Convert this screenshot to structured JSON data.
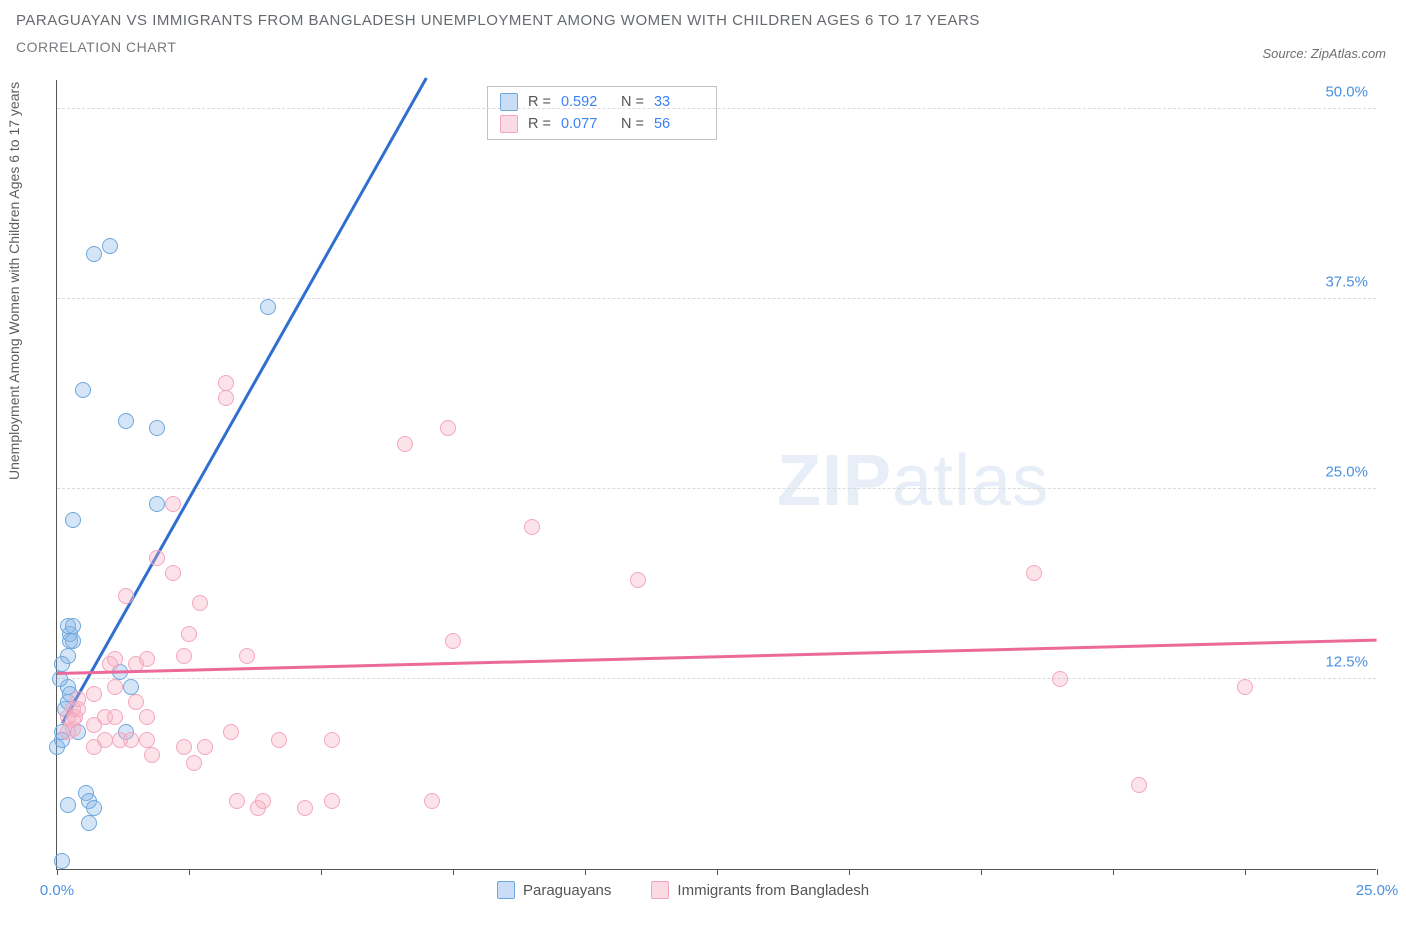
{
  "title": "PARAGUAYAN VS IMMIGRANTS FROM BANGLADESH UNEMPLOYMENT AMONG WOMEN WITH CHILDREN AGES 6 TO 17 YEARS",
  "subtitle": "CORRELATION CHART",
  "source": "Source: ZipAtlas.com",
  "watermark_a": "ZIP",
  "watermark_b": "atlas",
  "chart": {
    "type": "scatter",
    "y_axis_title": "Unemployment Among Women with Children Ages 6 to 17 years",
    "xlim": [
      0,
      25
    ],
    "ylim": [
      0,
      52
    ],
    "xticks": [
      0,
      2.5,
      5,
      7.5,
      10,
      12.5,
      15,
      17.5,
      20,
      22.5,
      25
    ],
    "xtick_labels": {
      "0": "0.0%",
      "25": "25.0%"
    },
    "yticks": [
      12.5,
      25.0,
      37.5,
      50.0
    ],
    "ytick_labels": [
      "12.5%",
      "25.0%",
      "37.5%",
      "50.0%"
    ],
    "grid_color": "#d8dadc",
    "background_color": "#ffffff",
    "axis_color": "#555555",
    "series": [
      {
        "name": "Paraguayans",
        "color_fill": "rgba(135,180,235,0.35)",
        "color_stroke": "#6fa8dc",
        "trend_color": "#2f6fd0",
        "r": 0.592,
        "n": 33,
        "trend": {
          "x0": 0.1,
          "y0": 9.5,
          "x1": 7.0,
          "y1": 52.0
        },
        "points": [
          [
            0.1,
            0.5
          ],
          [
            0.1,
            9.0
          ],
          [
            0.15,
            10.5
          ],
          [
            0.2,
            11.0
          ],
          [
            0.0,
            8.0
          ],
          [
            0.2,
            12.0
          ],
          [
            0.25,
            11.5
          ],
          [
            0.2,
            14.0
          ],
          [
            0.25,
            15.0
          ],
          [
            0.25,
            15.5
          ],
          [
            0.3,
            15.0
          ],
          [
            0.2,
            16.0
          ],
          [
            0.3,
            16.0
          ],
          [
            0.1,
            13.5
          ],
          [
            0.05,
            12.5
          ],
          [
            0.1,
            8.5
          ],
          [
            0.4,
            9.0
          ],
          [
            0.3,
            23.0
          ],
          [
            0.5,
            31.5
          ],
          [
            0.7,
            40.5
          ],
          [
            1.0,
            41.0
          ],
          [
            1.2,
            13.0
          ],
          [
            1.4,
            12.0
          ],
          [
            0.55,
            5.0
          ],
          [
            0.6,
            4.5
          ],
          [
            0.2,
            4.2
          ],
          [
            0.7,
            4.0
          ],
          [
            0.6,
            3.0
          ],
          [
            1.3,
            9.0
          ],
          [
            4.0,
            37.0
          ],
          [
            1.9,
            29.0
          ],
          [
            1.9,
            24.0
          ],
          [
            1.3,
            29.5
          ]
        ]
      },
      {
        "name": "Immigrants from Bangladesh",
        "color_fill": "rgba(245,175,195,0.35)",
        "color_stroke": "#f4a6bf",
        "trend_color": "#ec6a9a",
        "r": 0.077,
        "n": 56,
        "trend": {
          "x0": 0.0,
          "y0": 12.8,
          "x1": 25.0,
          "y1": 15.0
        },
        "points": [
          [
            0.2,
            10.0
          ],
          [
            0.3,
            10.5
          ],
          [
            0.2,
            9.0
          ],
          [
            0.3,
            9.2
          ],
          [
            0.3,
            9.8
          ],
          [
            0.35,
            10.0
          ],
          [
            0.4,
            10.5
          ],
          [
            0.4,
            11.2
          ],
          [
            0.7,
            9.5
          ],
          [
            0.7,
            8.0
          ],
          [
            0.7,
            11.5
          ],
          [
            0.9,
            10.0
          ],
          [
            0.9,
            8.5
          ],
          [
            1.0,
            13.5
          ],
          [
            1.1,
            13.8
          ],
          [
            1.1,
            12.0
          ],
          [
            1.1,
            10.0
          ],
          [
            1.2,
            8.5
          ],
          [
            1.4,
            8.5
          ],
          [
            1.3,
            18.0
          ],
          [
            1.5,
            13.5
          ],
          [
            1.5,
            11.0
          ],
          [
            1.7,
            13.8
          ],
          [
            1.7,
            10.0
          ],
          [
            1.7,
            8.5
          ],
          [
            1.8,
            7.5
          ],
          [
            2.2,
            24.0
          ],
          [
            1.9,
            20.5
          ],
          [
            2.2,
            19.5
          ],
          [
            2.4,
            8.0
          ],
          [
            2.4,
            14.0
          ],
          [
            2.5,
            15.5
          ],
          [
            2.6,
            7.0
          ],
          [
            2.7,
            17.5
          ],
          [
            2.8,
            8.0
          ],
          [
            3.2,
            32.0
          ],
          [
            3.2,
            31.0
          ],
          [
            3.3,
            9.0
          ],
          [
            3.4,
            4.5
          ],
          [
            3.6,
            14.0
          ],
          [
            3.8,
            4.0
          ],
          [
            3.9,
            4.5
          ],
          [
            4.2,
            8.5
          ],
          [
            4.7,
            4.0
          ],
          [
            5.2,
            8.5
          ],
          [
            5.2,
            4.5
          ],
          [
            6.6,
            28.0
          ],
          [
            7.1,
            4.5
          ],
          [
            7.4,
            29.0
          ],
          [
            7.5,
            15.0
          ],
          [
            9.0,
            22.5
          ],
          [
            11.0,
            19.0
          ],
          [
            18.5,
            19.5
          ],
          [
            19.0,
            12.5
          ],
          [
            20.5,
            5.5
          ],
          [
            22.5,
            12.0
          ]
        ]
      }
    ],
    "legend": {
      "items": [
        "Paraguayans",
        "Immigrants from Bangladesh"
      ]
    },
    "stats_labels": {
      "r": "R =",
      "n": "N ="
    }
  }
}
